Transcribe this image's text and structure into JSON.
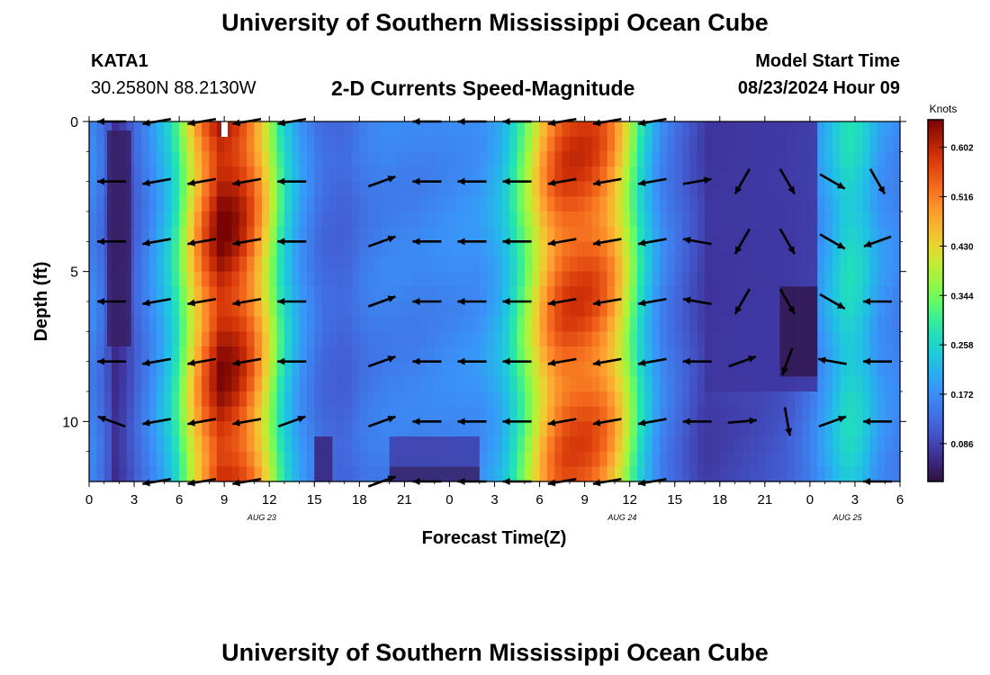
{
  "header": {
    "title": "University of Southern Mississippi Ocean Cube",
    "station_id": "KATA1",
    "coordinates": "30.2580N  88.2130W",
    "chart_title": "2-D Currents Speed-Magnitude",
    "model_start_label": "Model Start Time",
    "model_start_value": "08/23/2024 Hour 09"
  },
  "footer": {
    "title": "University of Southern Mississippi Ocean Cube"
  },
  "chart_data": {
    "type": "heatmap",
    "title": "2-D Currents Speed-Magnitude",
    "xlabel": "Forecast Time(Z)",
    "ylabel": "Depth (ft)",
    "x_range_hours": [
      0,
      54
    ],
    "ylim": [
      12,
      0
    ],
    "x_tick_labels": [
      "0",
      "3",
      "6",
      "9",
      "12",
      "15",
      "18",
      "21",
      "0",
      "3",
      "6",
      "9",
      "12",
      "15",
      "18",
      "21",
      "0",
      "3",
      "6"
    ],
    "y_tick_labels": [
      "0",
      "5",
      "10"
    ],
    "y_tick_values": [
      0,
      5,
      10
    ],
    "date_labels": [
      {
        "text": "AUG 23",
        "hour": 11.5
      },
      {
        "text": "AUG 24",
        "hour": 35.5
      },
      {
        "text": "AUG 25",
        "hour": 50.5
      }
    ],
    "colorbar": {
      "title": "Knots",
      "range": [
        0.02,
        0.65
      ],
      "ticks": [
        "0.086",
        "0.172",
        "0.258",
        "0.344",
        "0.430",
        "0.516",
        "0.602"
      ],
      "tick_values": [
        0.086,
        0.172,
        0.258,
        0.344,
        0.43,
        0.516,
        0.602
      ]
    },
    "time_profile_knots": [
      {
        "hour": 0,
        "value": 0.17
      },
      {
        "hour": 1,
        "value": 0.13
      },
      {
        "hour": 1.8,
        "value": 0.06
      },
      {
        "hour": 2.7,
        "value": 0.1
      },
      {
        "hour": 3.5,
        "value": 0.14
      },
      {
        "hour": 4.5,
        "value": 0.19
      },
      {
        "hour": 5.5,
        "value": 0.26
      },
      {
        "hour": 6.3,
        "value": 0.36
      },
      {
        "hour": 7,
        "value": 0.46
      },
      {
        "hour": 7.8,
        "value": 0.55
      },
      {
        "hour": 8.7,
        "value": 0.63
      },
      {
        "hour": 9.5,
        "value": 0.62
      },
      {
        "hour": 10.5,
        "value": 0.57
      },
      {
        "hour": 11.5,
        "value": 0.47
      },
      {
        "hour": 12.3,
        "value": 0.36
      },
      {
        "hour": 13,
        "value": 0.27
      },
      {
        "hour": 14,
        "value": 0.19
      },
      {
        "hour": 15.5,
        "value": 0.13
      },
      {
        "hour": 17,
        "value": 0.12
      },
      {
        "hour": 18.5,
        "value": 0.15
      },
      {
        "hour": 20,
        "value": 0.16
      },
      {
        "hour": 22,
        "value": 0.16
      },
      {
        "hour": 24,
        "value": 0.17
      },
      {
        "hour": 26,
        "value": 0.18
      },
      {
        "hour": 27.5,
        "value": 0.22
      },
      {
        "hour": 28.5,
        "value": 0.3
      },
      {
        "hour": 29.5,
        "value": 0.4
      },
      {
        "hour": 30.5,
        "value": 0.5
      },
      {
        "hour": 31.5,
        "value": 0.56
      },
      {
        "hour": 32.5,
        "value": 0.57
      },
      {
        "hour": 33.5,
        "value": 0.56
      },
      {
        "hour": 34.5,
        "value": 0.52
      },
      {
        "hour": 35.5,
        "value": 0.43
      },
      {
        "hour": 36.3,
        "value": 0.33
      },
      {
        "hour": 37,
        "value": 0.25
      },
      {
        "hour": 38,
        "value": 0.17
      },
      {
        "hour": 39.5,
        "value": 0.12
      },
      {
        "hour": 41,
        "value": 0.08
      },
      {
        "hour": 43,
        "value": 0.09
      },
      {
        "hour": 45,
        "value": 0.1
      },
      {
        "hour": 46.5,
        "value": 0.11
      },
      {
        "hour": 48,
        "value": 0.15
      },
      {
        "hour": 49.5,
        "value": 0.22
      },
      {
        "hour": 50.5,
        "value": 0.27
      },
      {
        "hour": 51.5,
        "value": 0.25
      },
      {
        "hour": 52.5,
        "value": 0.19
      },
      {
        "hour": 54,
        "value": 0.16
      }
    ],
    "low_speed_patches": [
      {
        "hour_range": [
          1.2,
          2.8
        ],
        "depth_range": [
          0.3,
          7.5
        ],
        "value": 0.04
      },
      {
        "hour_range": [
          15,
          16.2
        ],
        "depth_range": [
          10.5,
          12
        ],
        "value": 0.05
      },
      {
        "hour_range": [
          20,
          26
        ],
        "depth_range": [
          10.5,
          11.5
        ],
        "value": 0.08
      },
      {
        "hour_range": [
          20,
          26
        ],
        "depth_range": [
          11.5,
          12
        ],
        "value": 0.04
      },
      {
        "hour_range": [
          41,
          48.5
        ],
        "depth_range": [
          0,
          9
        ],
        "value": 0.07
      },
      {
        "hour_range": [
          46,
          48.5
        ],
        "depth_range": [
          5.5,
          8.5
        ],
        "value": 0.03
      }
    ],
    "arrow_depths": [
      0,
      2,
      4,
      6,
      8,
      10,
      12
    ],
    "arrow_hours": [
      1.5,
      4.5,
      7.5,
      10.5,
      13.5,
      19.5,
      22.5,
      25.5,
      28.5,
      31.5,
      34.5,
      37.5,
      40.5,
      43.5,
      46.5,
      49.5,
      52.5
    ],
    "arrow_directions_deg": [
      [
        180,
        190,
        190,
        190,
        190,
        null,
        180,
        180,
        180,
        190,
        190,
        190,
        null,
        null,
        null,
        null,
        null
      ],
      [
        180,
        190,
        190,
        190,
        180,
        20,
        180,
        180,
        180,
        190,
        190,
        190,
        10,
        240,
        300,
        330,
        300
      ],
      [
        180,
        190,
        190,
        190,
        180,
        20,
        180,
        180,
        180,
        190,
        190,
        190,
        170,
        240,
        300,
        330,
        200
      ],
      [
        180,
        190,
        190,
        190,
        180,
        20,
        180,
        180,
        180,
        190,
        190,
        190,
        170,
        240,
        300,
        330,
        180
      ],
      [
        180,
        190,
        190,
        190,
        180,
        20,
        180,
        180,
        180,
        190,
        190,
        190,
        180,
        20,
        250,
        170,
        180
      ],
      [
        160,
        190,
        190,
        190,
        20,
        20,
        180,
        180,
        180,
        190,
        190,
        190,
        180,
        5,
        280,
        20,
        180
      ],
      [
        null,
        190,
        190,
        190,
        null,
        20,
        180,
        180,
        180,
        190,
        190,
        190,
        null,
        null,
        null,
        null,
        180
      ]
    ]
  }
}
